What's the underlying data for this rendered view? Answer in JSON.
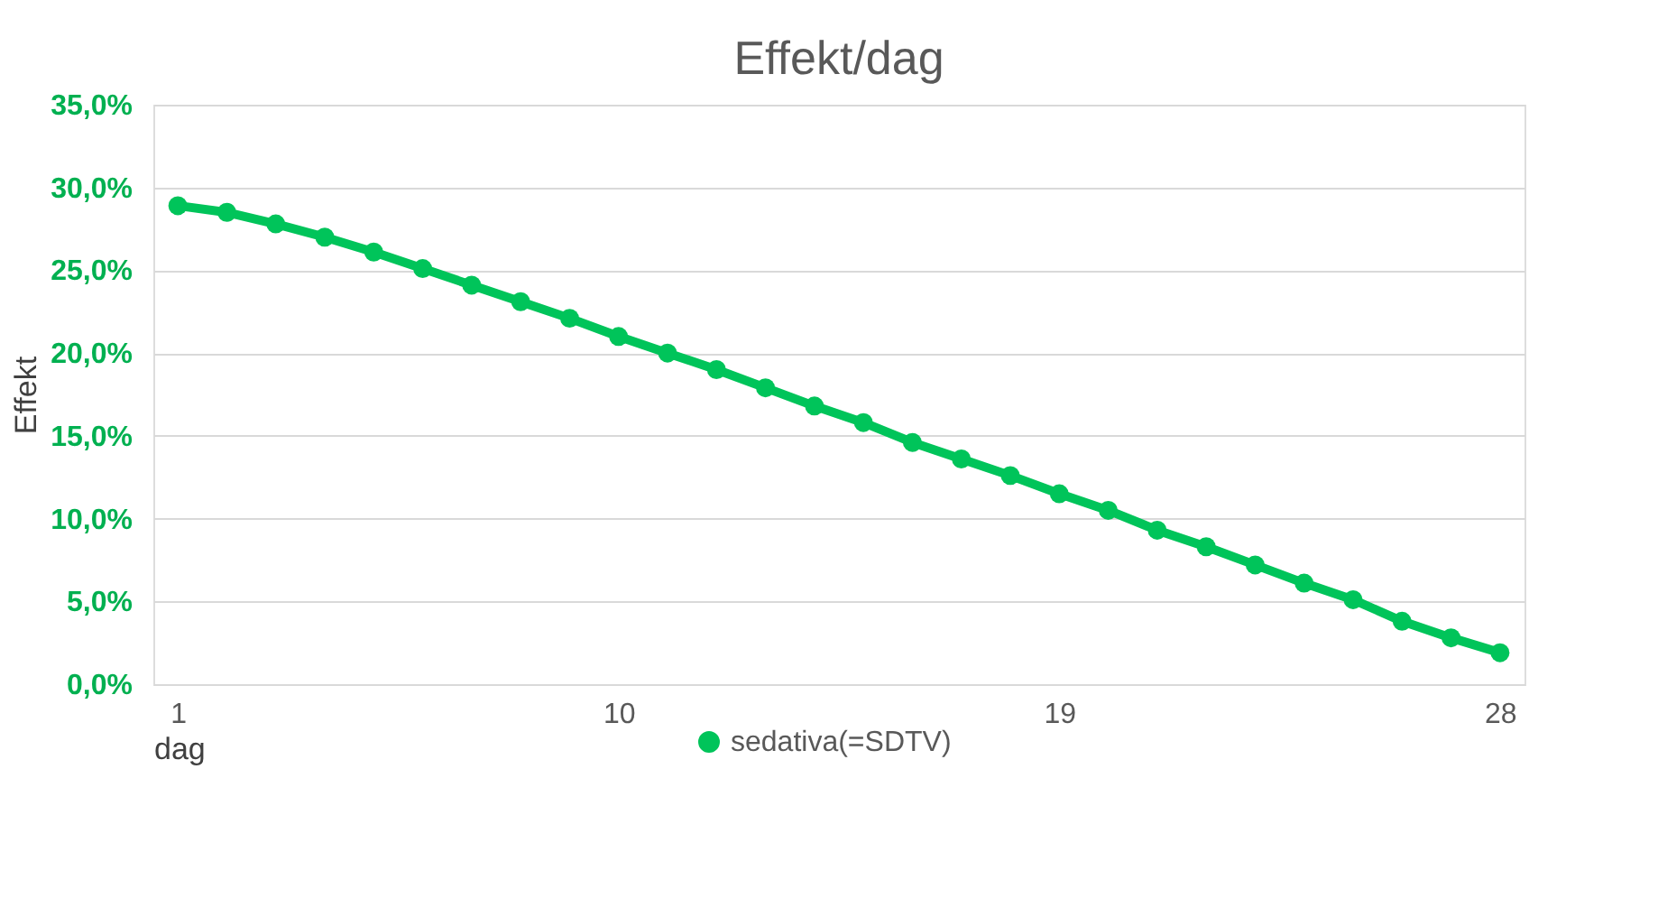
{
  "chart_data": {
    "type": "line",
    "title": "Effekt/dag",
    "xlabel": "dag",
    "ylabel": "Effekt",
    "x": [
      1,
      2,
      3,
      4,
      5,
      6,
      7,
      8,
      9,
      10,
      11,
      12,
      13,
      14,
      15,
      16,
      17,
      18,
      19,
      20,
      21,
      22,
      23,
      24,
      25,
      26,
      27,
      28
    ],
    "series": [
      {
        "name": "sedativa(=SDTV)",
        "color": "#00c45a",
        "values": [
          28.9,
          28.5,
          27.8,
          27.0,
          26.1,
          25.1,
          24.1,
          23.1,
          22.1,
          21.0,
          20.0,
          19.0,
          17.9,
          16.8,
          15.8,
          14.6,
          13.6,
          12.6,
          11.5,
          10.5,
          9.3,
          8.3,
          7.2,
          6.1,
          5.1,
          3.8,
          2.8,
          1.9
        ]
      }
    ],
    "xlim": [
      0.5,
      28.5
    ],
    "xticks": [
      1,
      10,
      19,
      28
    ],
    "ylim": [
      0,
      35
    ],
    "yticks": [
      {
        "value": 0,
        "label": "0,0%"
      },
      {
        "value": 5,
        "label": "5,0%"
      },
      {
        "value": 10,
        "label": "10,0%"
      },
      {
        "value": 15,
        "label": "15,0%"
      },
      {
        "value": 20,
        "label": "20,0%"
      },
      {
        "value": 25,
        "label": "25,0%"
      },
      {
        "value": 30,
        "label": "30,0%"
      },
      {
        "value": 35,
        "label": "35,0%"
      }
    ],
    "grid": "y",
    "legend": "bottom",
    "marker": "circle",
    "line_style": "solid"
  }
}
